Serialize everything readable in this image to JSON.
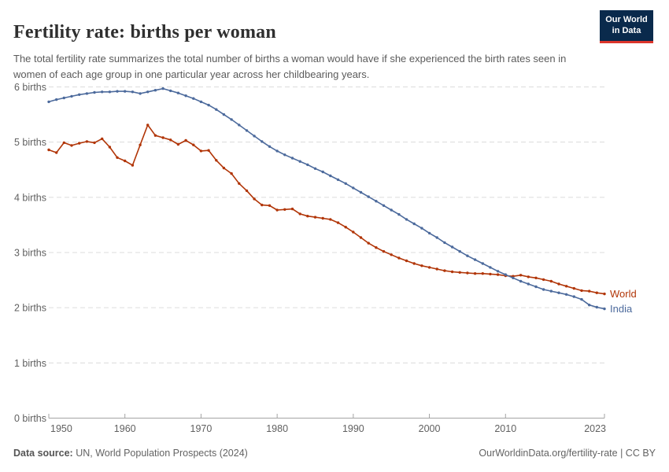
{
  "header": {
    "title": "Fertility rate: births per woman",
    "subtitle": "The total fertility rate summarizes the total number of births a woman would have if she experienced the birth rates seen in women of each age group in one particular year across her childbearing years."
  },
  "logo": {
    "line1": "Our World",
    "line2": "in Data",
    "bg_color": "#0a2a4c",
    "accent_color": "#dc352b"
  },
  "chart_data": {
    "type": "line",
    "title": "Fertility rate: births per woman",
    "grid": "horizontal dashed",
    "legend_position": "end-of-line labels",
    "ylim": [
      0,
      6
    ],
    "xlim": [
      1950,
      2023
    ],
    "y_ticks": [
      {
        "value": 0,
        "label": "0 births"
      },
      {
        "value": 1,
        "label": "1 births"
      },
      {
        "value": 2,
        "label": "2 births"
      },
      {
        "value": 3,
        "label": "3 births"
      },
      {
        "value": 4,
        "label": "4 births"
      },
      {
        "value": 5,
        "label": "5 births"
      },
      {
        "value": 6,
        "label": "6 births"
      }
    ],
    "x_ticks": [
      {
        "value": 1950,
        "label": "1950"
      },
      {
        "value": 1960,
        "label": "1960"
      },
      {
        "value": 1970,
        "label": "1970"
      },
      {
        "value": 1980,
        "label": "1980"
      },
      {
        "value": 1990,
        "label": "1990"
      },
      {
        "value": 2000,
        "label": "2000"
      },
      {
        "value": 2010,
        "label": "2010"
      },
      {
        "value": 2023,
        "label": "2023"
      }
    ],
    "x": [
      1950,
      1951,
      1952,
      1953,
      1954,
      1955,
      1956,
      1957,
      1958,
      1959,
      1960,
      1961,
      1962,
      1963,
      1964,
      1965,
      1966,
      1967,
      1968,
      1969,
      1970,
      1971,
      1972,
      1973,
      1974,
      1975,
      1976,
      1977,
      1978,
      1979,
      1980,
      1981,
      1982,
      1983,
      1984,
      1985,
      1986,
      1987,
      1988,
      1989,
      1990,
      1991,
      1992,
      1993,
      1994,
      1995,
      1996,
      1997,
      1998,
      1999,
      2000,
      2001,
      2002,
      2003,
      2004,
      2005,
      2006,
      2007,
      2008,
      2009,
      2010,
      2011,
      2012,
      2013,
      2014,
      2015,
      2016,
      2017,
      2018,
      2019,
      2020,
      2021,
      2022,
      2023
    ],
    "series": [
      {
        "name": "World",
        "color": "#B13507",
        "values": [
          4.86,
          4.81,
          4.99,
          4.94,
          4.98,
          5.01,
          4.99,
          5.06,
          4.91,
          4.72,
          4.66,
          4.58,
          4.95,
          5.31,
          5.12,
          5.08,
          5.04,
          4.96,
          5.03,
          4.95,
          4.84,
          4.85,
          4.67,
          4.53,
          4.43,
          4.25,
          4.12,
          3.97,
          3.86,
          3.85,
          3.77,
          3.78,
          3.79,
          3.7,
          3.66,
          3.64,
          3.62,
          3.6,
          3.54,
          3.46,
          3.37,
          3.27,
          3.17,
          3.09,
          3.02,
          2.96,
          2.9,
          2.85,
          2.8,
          2.76,
          2.73,
          2.7,
          2.67,
          2.65,
          2.64,
          2.63,
          2.62,
          2.62,
          2.61,
          2.6,
          2.58,
          2.57,
          2.59,
          2.56,
          2.54,
          2.51,
          2.48,
          2.43,
          2.39,
          2.35,
          2.31,
          2.3,
          2.27,
          2.25
        ]
      },
      {
        "name": "India",
        "color": "#4C6A9C",
        "values": [
          5.73,
          5.77,
          5.8,
          5.83,
          5.86,
          5.88,
          5.9,
          5.91,
          5.91,
          5.92,
          5.92,
          5.91,
          5.88,
          5.91,
          5.94,
          5.97,
          5.93,
          5.89,
          5.84,
          5.79,
          5.73,
          5.67,
          5.59,
          5.5,
          5.41,
          5.31,
          5.21,
          5.11,
          5.01,
          4.92,
          4.84,
          4.77,
          4.71,
          4.65,
          4.59,
          4.52,
          4.46,
          4.39,
          4.32,
          4.25,
          4.17,
          4.09,
          4.01,
          3.93,
          3.85,
          3.77,
          3.69,
          3.6,
          3.52,
          3.44,
          3.35,
          3.27,
          3.18,
          3.1,
          3.02,
          2.94,
          2.87,
          2.8,
          2.73,
          2.66,
          2.6,
          2.54,
          2.48,
          2.43,
          2.38,
          2.33,
          2.3,
          2.27,
          2.24,
          2.2,
          2.15,
          2.05,
          2.01,
          1.98
        ]
      }
    ],
    "colors": {
      "axis": "#a3a3a3",
      "grid": "#dcdcdc",
      "tick_label": "#606060"
    }
  },
  "footer": {
    "source_label": "Data source:",
    "source_text": " UN, World Population Prospects (2024)",
    "credit": "OurWorldinData.org/fertility-rate | CC BY"
  }
}
